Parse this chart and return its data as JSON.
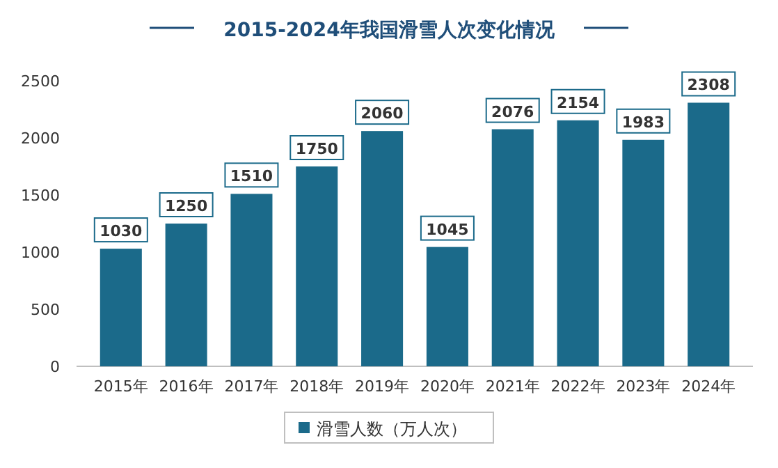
{
  "chart_data": {
    "type": "bar",
    "title": "2015-2024年我国滑雪人次变化情况",
    "categories": [
      "2015年",
      "2016年",
      "2017年",
      "2018年",
      "2019年",
      "2020年",
      "2021年",
      "2022年",
      "2023年",
      "2024年"
    ],
    "series": [
      {
        "name": "滑雪人数（万人次）",
        "color": "#1b6a8a",
        "values": [
          1030,
          1250,
          1510,
          1750,
          2060,
          1045,
          2076,
          2154,
          1983,
          2308
        ]
      }
    ],
    "ylim": [
      0,
      2500
    ],
    "yticks": [
      0,
      500,
      1000,
      1500,
      2000,
      2500
    ],
    "grid": false,
    "legend": "bottom",
    "data_labels": true
  }
}
